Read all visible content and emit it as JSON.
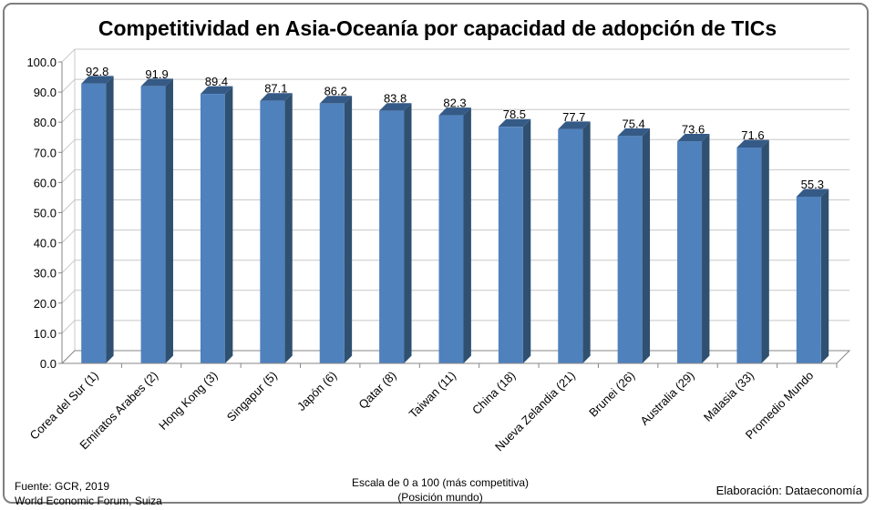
{
  "chart_data": {
    "type": "bar",
    "title": "Competitividad en Asia-Oceanía por capacidad de adopción de TICs",
    "categories": [
      "Corea del Sur (1)",
      "Emiratos Arabes (2)",
      "Hong Kong (3)",
      "Singapur (5)",
      "Japón (6)",
      "Qatar (8)",
      "Taiwan (11)",
      "China (18)",
      "Nueva Zelandia (21)",
      "Brunei (26)",
      "Australia (29)",
      "Malasia (33)",
      "Promedio Mundo"
    ],
    "values": [
      92.8,
      91.9,
      89.4,
      87.1,
      86.2,
      83.8,
      82.3,
      78.5,
      77.7,
      75.4,
      73.6,
      71.6,
      55.3
    ],
    "value_labels": [
      "92.8",
      "91.9",
      "89.4",
      "87.1",
      "86.2",
      "83.8",
      "82.3",
      "78.5",
      "77.7",
      "75.4",
      "73.6",
      "71.6",
      "55.3"
    ],
    "ylim": [
      0,
      100
    ],
    "yticks": [
      "0.0",
      "10.0",
      "20.0",
      "30.0",
      "40.0",
      "50.0",
      "60.0",
      "70.0",
      "80.0",
      "90.0",
      "100.0"
    ],
    "grid": true,
    "style": "3d-column",
    "colors": {
      "front": "#4f81bd",
      "side": "#2f5070",
      "top": "#355a86",
      "grid": "#c8c8c8",
      "axis": "#868686"
    }
  },
  "footer": {
    "source_line1": "Fuente:  GCR, 2019",
    "source_line2": "World Economic Forum, Suiza",
    "scale_line1": "Escala de 0 a 100 (más competitiva)",
    "scale_line2": "(Posición mundo)",
    "credit": "Elaboración: Dataeconomía"
  }
}
